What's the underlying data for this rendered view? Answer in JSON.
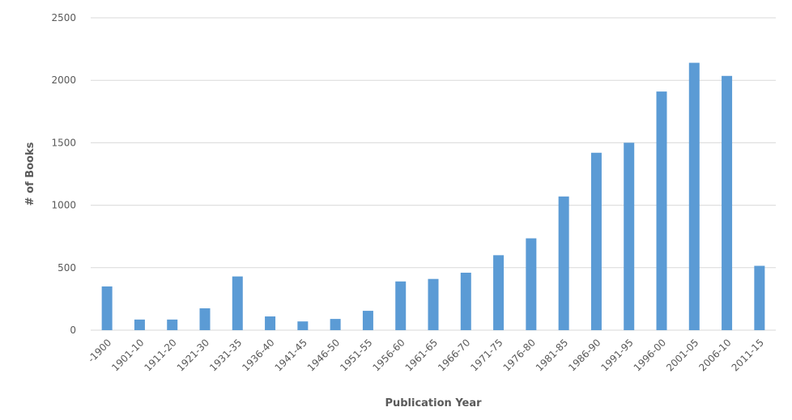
{
  "chart_data": {
    "type": "bar",
    "x_label": "Publication Year",
    "y_label": "# of Books",
    "categories": [
      "-1900",
      "1901-10",
      "1911-20",
      "1921-30",
      "1931-35",
      "1936-40",
      "1941-45",
      "1946-50",
      "1951-55",
      "1956-60",
      "1961-65",
      "1966-70",
      "1971-75",
      "1976-80",
      "1981-85",
      "1986-90",
      "1991-95",
      "1996-00",
      "2001-05",
      "2006-10",
      "2011-15"
    ],
    "values": [
      350,
      85,
      85,
      175,
      430,
      110,
      70,
      90,
      155,
      390,
      410,
      460,
      600,
      735,
      1070,
      1420,
      1500,
      1910,
      2140,
      2035,
      515
    ],
    "color": "#5b9bd5",
    "ylim": [
      0,
      2500
    ],
    "yticks": [
      0,
      500,
      1000,
      1500,
      2000,
      2500
    ],
    "grid": true
  }
}
